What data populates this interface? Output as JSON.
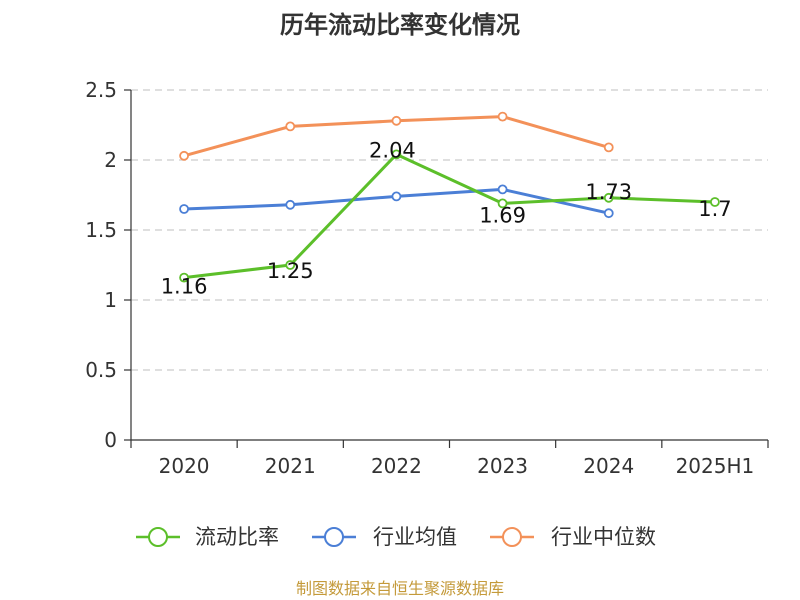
{
  "chart_data": {
    "type": "line",
    "title": "历年流动比率变化情况",
    "categories": [
      "2020",
      "2021",
      "2022",
      "2023",
      "2024",
      "2025H1"
    ],
    "ylim": [
      0,
      2.5
    ],
    "yticks": [
      "0",
      "0.5",
      "1",
      "1.5",
      "2",
      "2.5"
    ],
    "grid": true,
    "legend_position": "bottom",
    "series": [
      {
        "name": "流动比率",
        "color": "#5cbf2a",
        "values": [
          1.16,
          1.25,
          2.04,
          1.69,
          1.73,
          1.7
        ],
        "labels": [
          "1.16",
          "1.25",
          "2.04",
          "1.69",
          "1.73",
          "1.7"
        ]
      },
      {
        "name": "行业均值",
        "color": "#4b7fd6",
        "values": [
          1.65,
          1.68,
          1.74,
          1.79,
          1.62,
          null
        ]
      },
      {
        "name": "行业中位数",
        "color": "#f39159",
        "values": [
          2.03,
          2.24,
          2.28,
          2.31,
          2.09,
          null
        ]
      }
    ]
  },
  "source_note": "制图数据来自恒生聚源数据库"
}
